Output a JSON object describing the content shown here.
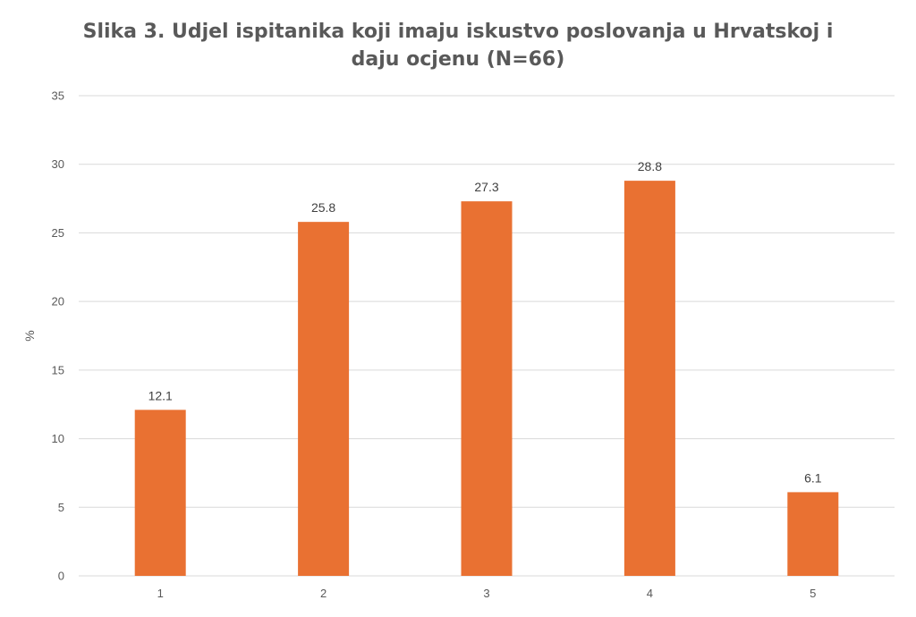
{
  "chart_data": {
    "type": "bar",
    "title_line1": "Slika 3. Udjel ispitanika koji imaju iskustvo poslovanja u Hrvatskoj i",
    "title_line2": "daju ocjenu (N=66)",
    "xlabel": "",
    "ylabel": "%",
    "categories": [
      "1",
      "2",
      "3",
      "4",
      "5"
    ],
    "values": [
      12.1,
      25.8,
      27.3,
      28.8,
      6.1
    ],
    "ylim": [
      0,
      35
    ],
    "yticks": [
      0,
      5,
      10,
      15,
      20,
      25,
      30,
      35
    ],
    "grid": true,
    "legend": "none",
    "bar_color": "#E97132",
    "grid_color": "#D9D9D9"
  }
}
